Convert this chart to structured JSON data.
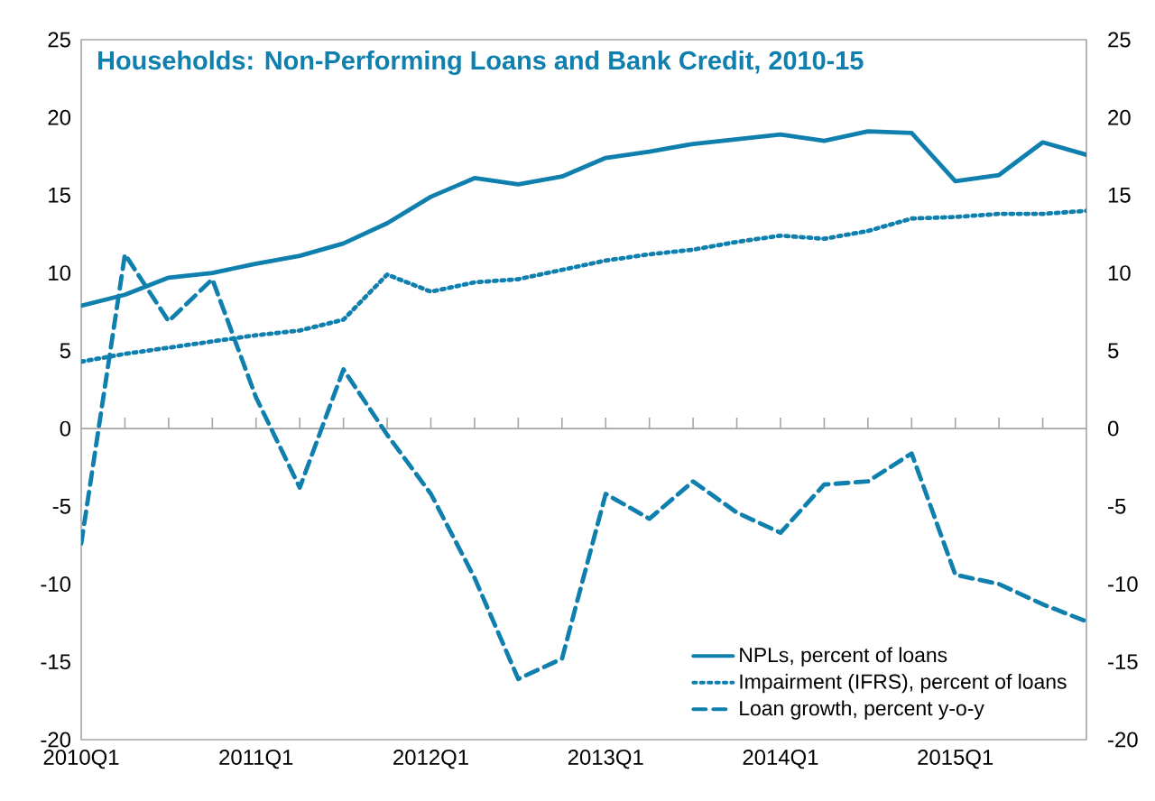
{
  "chart_data": {
    "type": "line",
    "title": "Households: Non-Performing Loans and Bank Credit, 2010-15",
    "categories": [
      "2010Q1",
      null,
      null,
      null,
      "2011Q1",
      null,
      null,
      null,
      "2012Q1",
      null,
      null,
      null,
      "2013Q1",
      null,
      null,
      null,
      "2014Q1",
      null,
      null,
      null,
      "2015Q1",
      null,
      null,
      null
    ],
    "series": [
      {
        "name": "NPLs, percent of loans",
        "color": "#0f7fae",
        "line_style": "solid",
        "values": [
          7.9,
          8.6,
          9.7,
          10.0,
          10.6,
          11.1,
          11.9,
          13.2,
          14.9,
          16.1,
          15.7,
          16.2,
          17.4,
          17.8,
          18.3,
          18.6,
          18.9,
          18.5,
          19.1,
          19.0,
          15.9,
          16.3,
          18.4,
          17.6
        ]
      },
      {
        "name": "Impairment (IFRS), percent of loans",
        "color": "#0f7fae",
        "line_style": "dotted",
        "values": [
          4.3,
          4.8,
          5.2,
          5.6,
          6.0,
          6.3,
          7.0,
          9.9,
          8.8,
          9.4,
          9.6,
          10.2,
          10.8,
          11.2,
          11.5,
          12.0,
          12.4,
          12.2,
          12.7,
          13.5,
          13.6,
          13.8,
          13.8,
          14.0
        ]
      },
      {
        "name": "Loan growth, percent y-o-y",
        "color": "#0f7fae",
        "line_style": "dashed",
        "values": [
          -7.4,
          11.2,
          6.9,
          9.6,
          2.0,
          -3.8,
          3.8,
          -0.4,
          -4.2,
          -9.6,
          -16.1,
          -14.8,
          -4.2,
          -5.8,
          -3.4,
          -5.4,
          -6.7,
          -3.6,
          -3.4,
          -1.6,
          -9.4,
          -10.0,
          -11.3,
          -12.4
        ]
      }
    ],
    "ylim": [
      -20,
      25
    ],
    "yticks": [
      -20,
      -15,
      -10,
      -5,
      0,
      5,
      10,
      15,
      20,
      25
    ],
    "y2lim": [
      -20,
      25
    ],
    "y2ticks": [
      -20,
      -15,
      -10,
      -5,
      0,
      5,
      10,
      15,
      20,
      25
    ],
    "ref_lines": [
      {
        "axis": "y",
        "value": 0,
        "color": "#a6a6a6",
        "line_style": "solid"
      }
    ],
    "grid": false,
    "legend": "bottom right",
    "marker": "none"
  }
}
